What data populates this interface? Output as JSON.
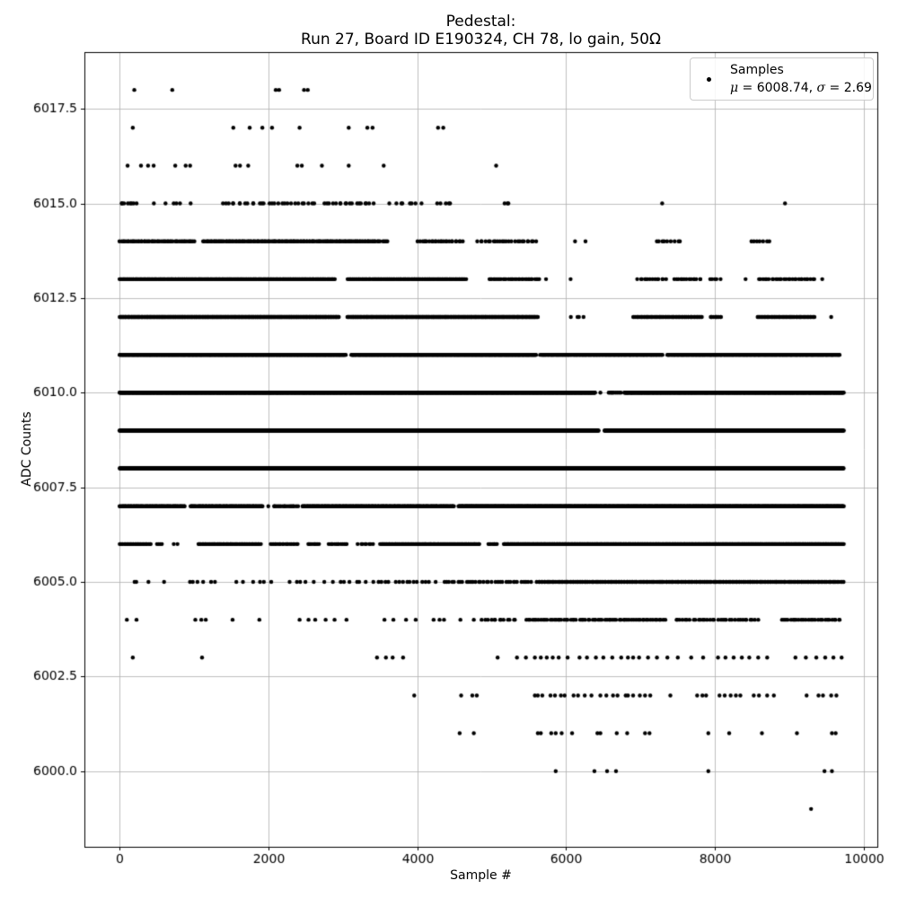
{
  "figure": {
    "title_line1": "Pedestal:",
    "title_line2": "Run 27, Board ID E190324, CH 78, lo gain, 50Ω"
  },
  "legend": {
    "series_label": "Samples",
    "mu_symbol": "μ",
    "mu_rest": " = 6008.74, ",
    "sigma_symbol": "σ",
    "sigma_rest": " = 2.69"
  },
  "chart_data": {
    "type": "scatter",
    "title": "Pedestal: Run 27, Board ID E190324, CH 78, lo gain, 50Ω",
    "xlabel": "Sample #",
    "ylabel": "ADC Counts",
    "legend_position": "upper right",
    "grid": true,
    "marker_color": "#000000",
    "grid_color": "#b0b0b0",
    "stats": {
      "mean": 6008.74,
      "sigma": 2.69
    },
    "xlim": [
      -470,
      10180
    ],
    "ylim": [
      5998.0,
      6019.0
    ],
    "xticks": {
      "values": [
        0,
        2000,
        4000,
        6000,
        8000,
        10000
      ],
      "labels": [
        "0",
        "2000",
        "4000",
        "6000",
        "8000",
        "10000"
      ]
    },
    "yticks": {
      "values": [
        6000.0,
        6002.5,
        6005.0,
        6007.5,
        6010.0,
        6012.5,
        6015.0,
        6017.5
      ],
      "labels": [
        "6000.0",
        "6002.5",
        "6005.0",
        "6007.5",
        "6010.0",
        "6012.5",
        "6015.0",
        "6017.5"
      ]
    },
    "sample_range": [
      0,
      9740
    ],
    "adc_levels": [
      5999,
      6018
    ],
    "bands": [
      {
        "adc": 6018,
        "dots": [
          200,
          710,
          2100,
          2145,
          2480,
          2530
        ]
      },
      {
        "adc": 6017,
        "dots": [
          180,
          1530,
          1750,
          1920,
          2050,
          2420,
          3080,
          3330,
          3400,
          4280,
          4350
        ]
      },
      {
        "adc": 6016,
        "dots": [
          110,
          290,
          385,
          460,
          750,
          890,
          950,
          1560,
          1620,
          1730,
          2390,
          2450,
          2720,
          3080,
          3550,
          5060
        ]
      },
      {
        "adc": 6015,
        "segs": [
          [
            0,
            260,
            2.5
          ],
          [
            450,
            1000,
            1.1
          ],
          [
            1350,
            2650,
            2.2
          ],
          [
            2740,
            3420,
            2.6
          ],
          [
            3600,
            4100,
            1.6
          ],
          [
            4270,
            4480,
            2.6
          ],
          [
            5130,
            5270,
            2.2
          ]
        ],
        "dots": [
          35,
          7290,
          8940
        ]
      },
      {
        "adc": 6014,
        "segs": [
          [
            0,
            1010,
            5
          ],
          [
            1120,
            3500,
            6
          ],
          [
            3520,
            3610,
            4
          ],
          [
            4000,
            4620,
            4
          ],
          [
            4800,
            5620,
            3
          ],
          [
            7180,
            7560,
            2.4
          ],
          [
            8470,
            8740,
            2.6
          ]
        ],
        "dots": [
          6120,
          6260
        ]
      },
      {
        "adc": 6013,
        "segs": [
          [
            0,
            2900,
            9
          ],
          [
            3060,
            4660,
            8
          ],
          [
            4950,
            5650,
            4.5
          ],
          [
            6950,
            7350,
            3.6
          ],
          [
            7450,
            7830,
            3.6
          ],
          [
            7930,
            8080,
            3.2
          ],
          [
            8580,
            9350,
            3.6
          ]
        ],
        "dots": [
          5730,
          6060,
          8410,
          9440
        ]
      },
      {
        "adc": 6012,
        "segs": [
          [
            0,
            2950,
            14
          ],
          [
            3060,
            5620,
            13
          ],
          [
            6000,
            6300,
            1.3
          ],
          [
            6900,
            7830,
            8
          ],
          [
            7930,
            8090,
            7
          ],
          [
            8560,
            9340,
            8
          ]
        ],
        "dots": [
          9560
        ]
      },
      {
        "adc": 6011,
        "segs": [
          [
            0,
            3040,
            16
          ],
          [
            3110,
            5600,
            15
          ],
          [
            5650,
            7300,
            10
          ],
          [
            7350,
            9680,
            11
          ]
        ],
        "dots": []
      },
      {
        "adc": 6010,
        "segs": [
          [
            0,
            6390,
            18
          ],
          [
            6550,
            6740,
            4.5
          ],
          [
            6780,
            9730,
            16
          ]
        ],
        "dots": [
          6460
        ]
      },
      {
        "adc": 6009,
        "segs": [
          [
            0,
            6440,
            18
          ],
          [
            6510,
            9730,
            16
          ]
        ],
        "dots": []
      },
      {
        "adc": 6008,
        "segs": [
          [
            0,
            9730,
            18
          ]
        ],
        "dots": []
      },
      {
        "adc": 6007,
        "segs": [
          [
            0,
            880,
            9
          ],
          [
            950,
            1930,
            9
          ],
          [
            2060,
            2400,
            5
          ],
          [
            2450,
            4500,
            9.5
          ],
          [
            4550,
            9730,
            13
          ]
        ],
        "dots": [
          2000
        ]
      },
      {
        "adc": 6006,
        "segs": [
          [
            0,
            430,
            7
          ],
          [
            500,
            570,
            5
          ],
          [
            1050,
            1900,
            7.5
          ],
          [
            2020,
            2400,
            5
          ],
          [
            2520,
            2690,
            5
          ],
          [
            2800,
            3060,
            5
          ],
          [
            3200,
            3410,
            4
          ],
          [
            3500,
            4840,
            8.5
          ],
          [
            4950,
            5080,
            6
          ],
          [
            5160,
            9730,
            12
          ]
        ],
        "dots": [
          730,
          780
        ]
      },
      {
        "adc": 6005,
        "segs": [
          [
            150,
            270,
            2
          ],
          [
            880,
            1310,
            1.3
          ],
          [
            1550,
            2110,
            1.1
          ],
          [
            2250,
            2660,
            1.3
          ],
          [
            2750,
            3360,
            1.3
          ],
          [
            3400,
            4260,
            1.9
          ],
          [
            4350,
            5550,
            2.8
          ],
          [
            5600,
            9730,
            5.5
          ]
        ],
        "dots": [
          390,
          600
        ]
      },
      {
        "adc": 6004,
        "segs": [
          [
            4850,
            5350,
            2.6
          ],
          [
            5450,
            7350,
            3.5
          ],
          [
            7450,
            8580,
            3.0
          ],
          [
            8870,
            9700,
            3.2
          ]
        ],
        "dots": [
          100,
          230,
          1020,
          1100,
          1160,
          1520,
          1880,
          2420,
          2540,
          2630,
          2770,
          2890,
          3050,
          3560,
          3680,
          3850,
          3980,
          4220,
          4300,
          4360,
          4580,
          4760
        ]
      },
      {
        "adc": 6003,
        "dots": [
          180,
          1110,
          3460,
          3580,
          3670,
          3810,
          5080,
          5340,
          5460,
          5580,
          5660,
          5740,
          5820,
          5900,
          6020,
          6180,
          6280,
          6400,
          6500,
          6620,
          6740,
          6830,
          6900,
          6980,
          7100,
          7220,
          7360,
          7500,
          7680,
          7840,
          8040,
          8140,
          8250,
          8360,
          8460,
          8580,
          8700,
          9080,
          9220,
          9360,
          9480,
          9590,
          9700
        ]
      },
      {
        "adc": 6002,
        "dots": [
          3960,
          4590,
          4740,
          4800,
          5580,
          5620,
          5680,
          5790,
          5850,
          5930,
          5980,
          6100,
          6160,
          6250,
          6340,
          6460,
          6540,
          6630,
          6690,
          6800,
          6830,
          6900,
          6990,
          7060,
          7130,
          7400,
          7760,
          7830,
          7880,
          8060,
          8130,
          8210,
          8280,
          8340,
          8520,
          8590,
          8700,
          8790,
          9230,
          9390,
          9450,
          9560,
          9630
        ]
      },
      {
        "adc": 6001,
        "dots": [
          4570,
          4760,
          5620,
          5660,
          5800,
          5860,
          5940,
          6080,
          6420,
          6460,
          6680,
          6820,
          7060,
          7120,
          7910,
          8190,
          8630,
          9100,
          9570,
          9620
        ]
      },
      {
        "adc": 6000,
        "dots": [
          5860,
          6380,
          6550,
          6670,
          7910,
          9470,
          9570
        ]
      },
      {
        "adc": 5999,
        "dots": [
          9290
        ]
      }
    ]
  }
}
